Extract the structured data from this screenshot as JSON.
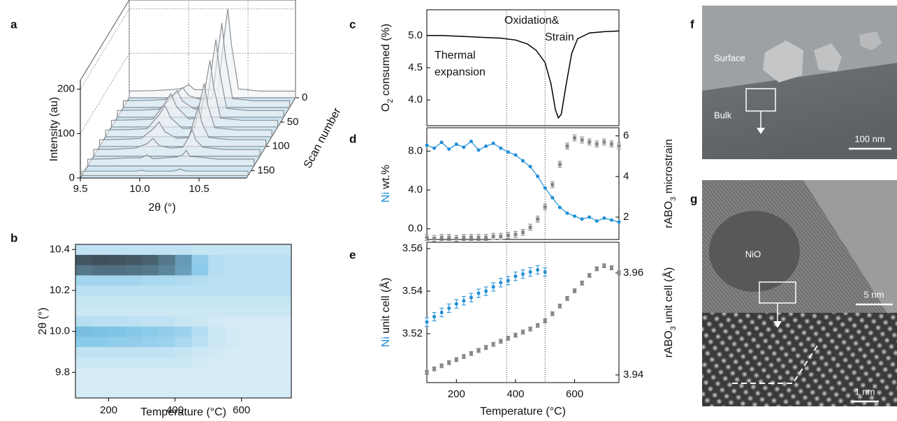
{
  "chart_data": [
    {
      "type": "waterfall",
      "panel": "a",
      "xlabel": "2θ (°)",
      "ylabel": "Intensity (au)",
      "zlabel": "Scan number",
      "x": [
        9.5,
        9.7,
        9.85,
        9.95,
        10.0,
        10.05,
        10.15,
        10.25,
        10.3,
        10.33,
        10.36,
        10.42,
        10.6,
        10.9
      ],
      "scans": [
        0,
        20,
        40,
        60,
        80,
        100,
        120,
        140,
        160
      ],
      "intensity": [
        [
          15,
          16,
          18,
          21,
          30,
          18,
          18,
          20,
          140,
          200,
          120,
          20,
          15,
          15
        ],
        [
          15,
          16,
          18,
          32,
          45,
          27,
          18,
          20,
          133,
          190,
          114,
          20,
          15,
          15
        ],
        [
          15,
          16,
          18,
          42,
          60,
          36,
          18,
          20,
          123,
          175,
          105,
          20,
          15,
          15
        ],
        [
          15,
          16,
          18,
          53,
          75,
          45,
          18,
          20,
          105,
          150,
          90,
          20,
          15,
          15
        ],
        [
          15,
          16,
          18,
          49,
          70,
          42,
          18,
          20,
          84,
          120,
          72,
          20,
          15,
          15
        ],
        [
          15,
          16,
          18,
          39,
          55,
          33,
          18,
          20,
          63,
          90,
          54,
          20,
          15,
          15
        ],
        [
          15,
          16,
          18,
          28,
          40,
          24,
          18,
          20,
          42,
          60,
          36,
          20,
          15,
          15
        ],
        [
          15,
          16,
          18,
          18,
          25,
          16,
          18,
          20,
          25,
          35,
          21,
          20,
          15,
          15
        ],
        [
          10,
          10,
          10,
          10,
          12,
          10,
          10,
          10,
          12,
          15,
          11,
          10,
          10,
          10
        ]
      ],
      "xlim": [
        9.5,
        10.9
      ],
      "xticks": [
        9.5,
        {
          "value": 10,
          "label": "10.0"
        },
        10.5
      ],
      "ylim": [
        0,
        220
      ],
      "yticks": [
        0,
        100,
        200
      ],
      "zlim": [
        0,
        165
      ],
      "zticks": [
        0,
        50,
        100,
        150
      ],
      "color": "#8a9096",
      "floor_color": "#cfe6f3",
      "grid": true
    },
    {
      "type": "heatmap",
      "panel": "b",
      "xlabel": "Temperature (°C)",
      "ylabel": "2θ (°)",
      "x": [
        125,
        175,
        225,
        275,
        325,
        375,
        425,
        475,
        525,
        575,
        625,
        675,
        725
      ],
      "y": [
        9.7,
        9.75,
        9.8,
        9.85,
        9.9,
        9.95,
        10.0,
        10.05,
        10.1,
        10.15,
        10.2,
        10.25,
        10.3,
        10.35,
        10.4
      ],
      "z": [
        [
          5,
          5,
          5,
          5,
          5,
          5,
          5,
          5,
          5,
          5,
          5,
          5,
          5
        ],
        [
          5,
          5,
          5,
          5,
          5,
          5,
          5,
          5,
          5,
          5,
          5,
          5,
          5
        ],
        [
          5,
          5,
          5,
          5,
          5,
          5,
          5,
          5,
          5,
          5,
          5,
          5,
          5
        ],
        [
          8,
          8,
          8,
          8,
          8,
          8,
          8,
          6,
          5,
          5,
          5,
          5,
          5
        ],
        [
          12,
          12,
          12,
          12,
          12,
          12,
          10,
          8,
          6,
          5,
          5,
          5,
          5
        ],
        [
          30,
          30,
          28,
          28,
          26,
          24,
          20,
          14,
          8,
          6,
          5,
          5,
          5
        ],
        [
          38,
          36,
          34,
          32,
          30,
          28,
          24,
          16,
          8,
          6,
          5,
          5,
          5
        ],
        [
          15,
          14,
          14,
          13,
          12,
          12,
          10,
          8,
          6,
          5,
          5,
          5,
          5
        ],
        [
          8,
          8,
          8,
          8,
          8,
          8,
          8,
          8,
          8,
          8,
          8,
          8,
          8
        ],
        [
          10,
          10,
          10,
          10,
          10,
          10,
          10,
          10,
          10,
          10,
          10,
          10,
          10
        ],
        [
          14,
          14,
          14,
          14,
          14,
          14,
          14,
          14,
          14,
          14,
          14,
          14,
          14
        ],
        [
          22,
          22,
          22,
          22,
          20,
          20,
          18,
          16,
          14,
          14,
          14,
          14,
          14
        ],
        [
          70,
          74,
          74,
          72,
          70,
          64,
          52,
          30,
          16,
          14,
          14,
          14,
          14
        ],
        [
          85,
          88,
          86,
          84,
          80,
          70,
          54,
          28,
          16,
          14,
          14,
          14,
          14
        ],
        [
          12,
          12,
          12,
          12,
          12,
          12,
          12,
          10,
          10,
          10,
          10,
          10,
          10
        ]
      ],
      "xlim": [
        100,
        750
      ],
      "xticks": [
        200,
        400,
        600
      ],
      "ylim": [
        9.675,
        10.425
      ],
      "yticks": [
        9.8,
        {
          "value": 10,
          "label": "10.0"
        },
        10.2,
        10.4
      ]
    },
    {
      "type": "line",
      "panel": "c",
      "ylabel": [
        {
          "text": "O"
        },
        {
          "text": "2",
          "sub": true
        },
        {
          "text": " consumed (%)"
        }
      ],
      "annotations": [
        [
          "Thermal",
          "expansion"
        ],
        [
          "Oxidation&",
          "Strain"
        ]
      ],
      "vlines": [
        370,
        500
      ],
      "x": [
        100,
        150,
        200,
        250,
        300,
        350,
        400,
        440,
        470,
        500,
        520,
        535,
        545,
        555,
        570,
        590,
        610,
        650,
        700,
        750
      ],
      "series": [
        {
          "color": "#000000",
          "values": [
            5.0,
            5.0,
            4.99,
            4.98,
            4.97,
            4.96,
            4.93,
            4.87,
            4.77,
            4.58,
            4.25,
            3.85,
            3.72,
            3.78,
            4.2,
            4.72,
            4.95,
            5.04,
            5.06,
            5.07
          ]
        }
      ],
      "xlim": [
        100,
        750
      ],
      "ylim": [
        3.6,
        5.4
      ],
      "yticks": [
        {
          "value": 4,
          "label": "4.0"
        },
        4.5,
        {
          "value": 5,
          "label": "5.0"
        }
      ]
    },
    {
      "type": "scatter",
      "panel": "d",
      "ylabel": [
        {
          "text": "Ni",
          "color": "#1f8fd6"
        },
        {
          "text": " wt.%"
        }
      ],
      "y2label": [
        {
          "text": "rABO"
        },
        {
          "text": "3",
          "sub": true
        },
        {
          "text": " microstrain"
        }
      ],
      "vlines": [
        370,
        500
      ],
      "x": [
        100,
        125,
        150,
        175,
        200,
        225,
        250,
        275,
        300,
        325,
        350,
        375,
        400,
        425,
        450,
        475,
        500,
        525,
        550,
        575,
        600,
        625,
        650,
        675,
        700,
        725,
        750
      ],
      "series": [
        {
          "color": "#1f8fd6",
          "marker": "circle",
          "connect": true,
          "values": [
            8.6,
            8.3,
            8.9,
            8.2,
            8.7,
            8.4,
            9.0,
            8.1,
            8.5,
            8.8,
            8.3,
            7.9,
            7.6,
            7.0,
            6.4,
            5.4,
            4.2,
            3.2,
            2.2,
            1.6,
            1.3,
            1.0,
            1.2,
            0.8,
            1.1,
            0.9,
            0.7
          ]
        },
        {
          "color": "#888888",
          "marker": "square",
          "axis": "y2",
          "values": [
            1.0,
            0.95,
            1.0,
            1.0,
            0.95,
            1.0,
            1.0,
            1.0,
            1.0,
            1.05,
            1.05,
            1.1,
            1.15,
            1.25,
            1.5,
            1.9,
            2.5,
            3.6,
            4.6,
            5.5,
            5.9,
            5.8,
            5.7,
            5.6,
            5.7,
            5.6,
            5.5
          ],
          "errors": [
            0.15,
            0.15,
            0.15,
            0.15,
            0.15,
            0.15,
            0.15,
            0.15,
            0.15,
            0.15,
            0.15,
            0.15,
            0.15,
            0.15,
            0.15,
            0.15,
            0.15,
            0.15,
            0.15,
            0.15,
            0.15,
            0.15,
            0.15,
            0.15,
            0.15,
            0.15,
            0.15
          ]
        }
      ],
      "xlim": [
        100,
        750
      ],
      "ylim": [
        -1.1,
        10.4
      ],
      "yticks": [
        {
          "value": 0,
          "label": "0.0"
        },
        {
          "value": 4,
          "label": "4.0"
        },
        {
          "value": 8,
          "label": "8.0"
        }
      ],
      "y2lim": [
        0.9,
        6.4
      ],
      "y2ticks": [
        2,
        4,
        6
      ]
    },
    {
      "type": "scatter",
      "panel": "e",
      "xlabel": "Temperature (°C)",
      "ylabel": [
        {
          "text": "Ni",
          "color": "#1f8fd6"
        },
        {
          "text": " unit cell (Å)"
        }
      ],
      "y2label": [
        {
          "text": "rABO"
        },
        {
          "text": "3",
          "sub": true
        },
        {
          "text": " unit cell (Å)"
        }
      ],
      "vlines": [
        370,
        500
      ],
      "series": [
        {
          "color": "#1f8fd6",
          "marker": "circle",
          "x": [
            100,
            125,
            150,
            175,
            200,
            225,
            250,
            275,
            300,
            325,
            350,
            375,
            400,
            425,
            450,
            475,
            500
          ],
          "values": [
            3.5255,
            3.528,
            3.53,
            3.532,
            3.534,
            3.5355,
            3.537,
            3.539,
            3.54,
            3.542,
            3.544,
            3.545,
            3.547,
            3.548,
            3.549,
            3.55,
            3.549
          ],
          "errors": [
            0.002,
            0.002,
            0.002,
            0.002,
            0.002,
            0.002,
            0.002,
            0.002,
            0.002,
            0.002,
            0.002,
            0.002,
            0.002,
            0.002,
            0.002,
            0.002,
            0.002
          ]
        },
        {
          "color": "#888888",
          "marker": "square",
          "axis": "y2",
          "x": [
            100,
            125,
            150,
            175,
            200,
            225,
            250,
            275,
            300,
            325,
            350,
            375,
            400,
            425,
            450,
            475,
            500,
            525,
            550,
            575,
            600,
            625,
            650,
            675,
            700,
            725,
            750
          ],
          "values": [
            3.9405,
            3.9412,
            3.9418,
            3.9424,
            3.943,
            3.9436,
            3.9442,
            3.9448,
            3.9454,
            3.946,
            3.9466,
            3.9472,
            3.9478,
            3.9484,
            3.949,
            3.9497,
            3.9506,
            3.952,
            3.9535,
            3.955,
            3.9565,
            3.958,
            3.9595,
            3.9608,
            3.9614,
            3.961,
            3.96
          ],
          "errors": [
            0.0004,
            0.0004,
            0.0004,
            0.0004,
            0.0004,
            0.0004,
            0.0004,
            0.0004,
            0.0004,
            0.0004,
            0.0004,
            0.0004,
            0.0004,
            0.0004,
            0.0004,
            0.0004,
            0.0004,
            0.0004,
            0.0004,
            0.0004,
            0.0004,
            0.0004,
            0.0004,
            0.0004,
            0.0004,
            0.0004,
            0.0004
          ]
        }
      ],
      "xlim": [
        100,
        750
      ],
      "xticks": [
        200,
        400,
        600
      ],
      "ylim": [
        3.497,
        3.563
      ],
      "yticks": [
        3.52,
        3.54,
        3.56
      ],
      "y2lim": [
        3.9385,
        3.966
      ],
      "y2ticks": [
        3.94,
        3.96
      ]
    }
  ],
  "figures": [
    {
      "panel": "f",
      "labels": [
        "Surface",
        "Bulk"
      ],
      "scale_bar": "100 nm"
    },
    {
      "panel": "g",
      "labels": [
        "NiO"
      ],
      "scale_bars": [
        "5 nm",
        "1 nm"
      ]
    }
  ]
}
